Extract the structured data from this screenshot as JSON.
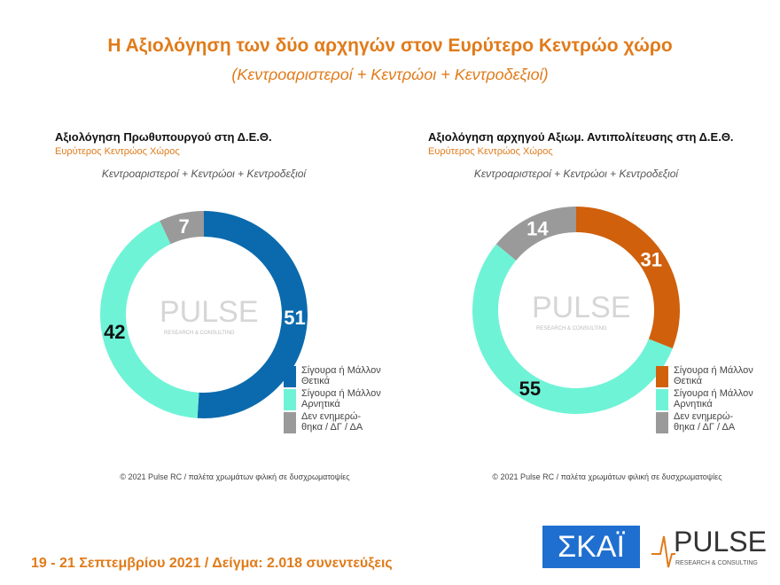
{
  "header": {
    "title": "Η  Αξιολόγηση  των  δύο  αρχηγών  στον  Ευρύτερο  Κεντρώο  χώρο",
    "subtitle": "(Κεντροαριστεροί + Κεντρώοι + Κεντροδεξιοί)"
  },
  "watermark": {
    "name": "PULSE",
    "tagline": "RESEARCH & CONSULTING"
  },
  "chart_data": [
    {
      "type": "pie",
      "title": "Αξιολόγηση Πρωθυπουργού στη Δ.Ε.Θ.",
      "subtitle": "Ευρύτερος Κεντρώος Χώρος",
      "note": "Κεντροαριστεροί + Κεντρώοι + Κεντροδεξιοί",
      "categories": [
        "Σίγουρα ή Μάλλον Θετικά",
        "Σίγουρα ή Μάλλον Αρνητικά",
        "Δεν ενημερώ-θηκα / ΔΓ / ΔΑ"
      ],
      "values": [
        51,
        42,
        7
      ],
      "colors": [
        "#0b6aad",
        "#6ff3d6",
        "#9a9a9a"
      ],
      "source": "© 2021 Pulse RC  /  παλέτα χρωμάτων φιλική σε δυσχρωματοψίες"
    },
    {
      "type": "pie",
      "title": "Αξιολόγηση αρχηγού Αξιωμ. Αντιπολίτευσης στη Δ.Ε.Θ.",
      "subtitle": "Ευρύτερος Κεντρώος Χώρος",
      "note": "Κεντροαριστεροί + Κεντρώοι + Κεντροδεξιοί",
      "categories": [
        "Σίγουρα ή Μάλλον Θετικά",
        "Σίγουρα ή Μάλλον Αρνητικά",
        "Δεν ενημερώ-θηκα / ΔΓ / ΔΑ"
      ],
      "values": [
        31,
        55,
        14
      ],
      "colors": [
        "#d0600c",
        "#6ff3d6",
        "#9a9a9a"
      ],
      "source": "© 2021 Pulse RC  /  παλέτα χρωμάτων φιλική σε δυσχρωματοψίες"
    }
  ],
  "footer": {
    "text": "19 - 21 Σεπτεμβρίου 2021  /  Δείγμα:  2.018 συνεντεύξεις"
  },
  "logos": {
    "skai": "ΣΚΑΪ",
    "pulse": "PULSE",
    "pulse_tagline": "RESEARCH & CONSULTING"
  }
}
